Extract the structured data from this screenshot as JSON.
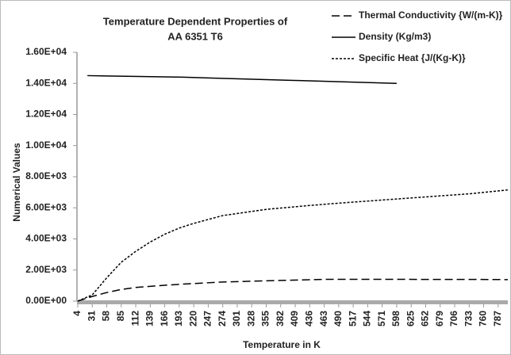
{
  "chart_data": {
    "type": "line",
    "title": [
      "Temperature Dependent Properties of",
      "AA 6351 T6"
    ],
    "x_label": "Temperature in K",
    "y_label": "Numerical Values",
    "xlim": [
      4,
      805
    ],
    "xticks": [
      4,
      31,
      58,
      85,
      112,
      139,
      166,
      193,
      220,
      247,
      274,
      301,
      328,
      355,
      382,
      409,
      436,
      463,
      490,
      517,
      544,
      571,
      598,
      625,
      652,
      679,
      706,
      733,
      760,
      787
    ],
    "ylim": [
      0,
      16000
    ],
    "yticks": [
      {
        "value": 0,
        "label": "0.00E+00"
      },
      {
        "value": 2000,
        "label": "2.00E+03"
      },
      {
        "value": 4000,
        "label": "4.00E+03"
      },
      {
        "value": 6000,
        "label": "6.00E+03"
      },
      {
        "value": 8000,
        "label": "8.00E+03"
      },
      {
        "value": 10000,
        "label": "1.00E+04"
      },
      {
        "value": 12000,
        "label": "1.20E+04"
      },
      {
        "value": 14000,
        "label": "1.40E+04"
      },
      {
        "value": 16000,
        "label": "1.60E+04"
      }
    ],
    "legend": "top-right",
    "series": [
      {
        "name": "Thermal Conductivity  {W/(m-K)}",
        "color": "#000000",
        "dash": "dashed",
        "x": [
          4,
          31,
          58,
          85,
          112,
          166,
          193,
          274,
          382,
          463,
          598,
          787,
          805
        ],
        "values": [
          0,
          300,
          550,
          750,
          880,
          1020,
          1080,
          1230,
          1330,
          1400,
          1400,
          1390,
          1380
        ]
      },
      {
        "name": "Density (Kg/m3)",
        "color": "#000000",
        "dash": "solid",
        "x": [
          22,
          200,
          400,
          598
        ],
        "values": [
          14500,
          14400,
          14200,
          14000
        ]
      },
      {
        "name": "Specific Heat {J/(Kg-K)}",
        "color": "#000000",
        "dash": "dotted",
        "x": [
          4,
          31,
          58,
          85,
          112,
          139,
          166,
          193,
          220,
          274,
          355,
          436,
          490,
          571,
          652,
          733,
          805
        ],
        "values": [
          0,
          400,
          1500,
          2500,
          3200,
          3800,
          4300,
          4700,
          5000,
          5500,
          5900,
          6150,
          6300,
          6500,
          6700,
          6900,
          7150
        ]
      }
    ]
  }
}
